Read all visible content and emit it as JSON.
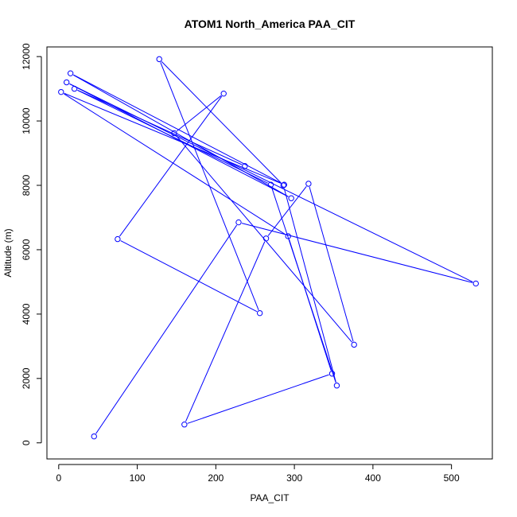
{
  "chart_data": {
    "type": "line",
    "title": "ATOM1 North_America PAA_CIT",
    "xlabel": "PAA_CIT",
    "ylabel": "Altitude (m)",
    "xlim": [
      -15,
      552
    ],
    "ylim": [
      -500,
      12300
    ],
    "x_ticks": [
      0,
      100,
      200,
      300,
      400,
      500
    ],
    "y_ticks": [
      0,
      2000,
      4000,
      6000,
      8000,
      10000,
      12000
    ],
    "x_tick_labels": [
      "0",
      "100",
      "200",
      "300",
      "400",
      "500"
    ],
    "y_tick_labels": [
      "0",
      "2000",
      "4000",
      "6000",
      "8000",
      "10000",
      "12000"
    ],
    "grid": false,
    "legend": "none",
    "series": [
      {
        "color": "#0000ff",
        "marker": "open-circle",
        "x": [
          45,
          229,
          531,
          10,
          296,
          15,
          287,
          3,
          292,
          348,
          160,
          264,
          318,
          376,
          147,
          210,
          75,
          256,
          128,
          286,
          354,
          270,
          20,
          237
        ],
        "y": [
          200,
          6850,
          4950,
          11200,
          7600,
          11480,
          8020,
          10900,
          6420,
          2150,
          570,
          6350,
          8050,
          3050,
          9620,
          10850,
          6330,
          4030,
          11920,
          8000,
          1780,
          8020,
          11000,
          8600
        ]
      }
    ]
  }
}
